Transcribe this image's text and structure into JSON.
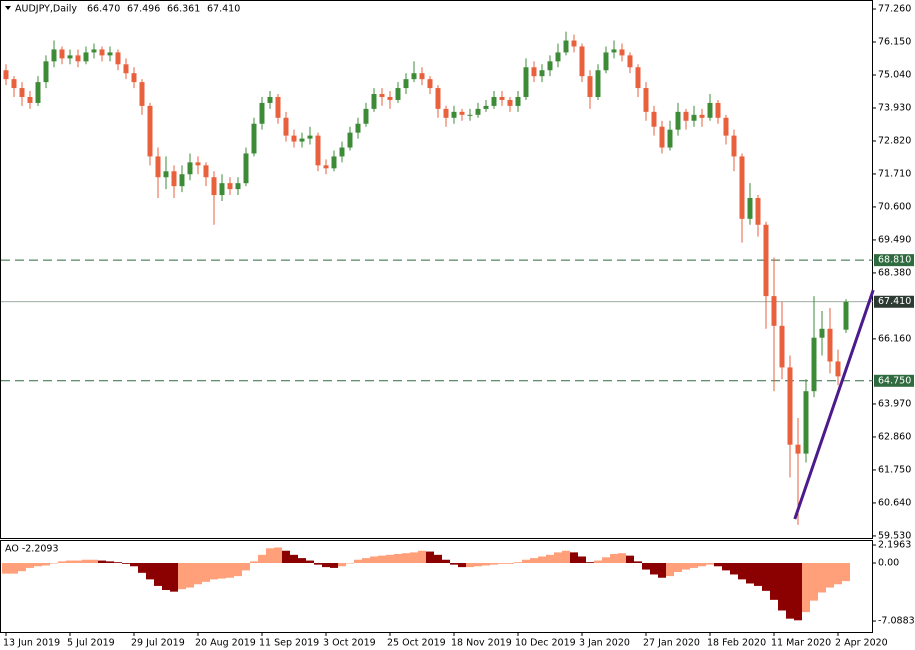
{
  "chart_data": [
    {
      "type": "candlestick",
      "title": "AUDJPY,Daily",
      "title_values": [
        "66.470",
        "67.496",
        "66.361",
        "67.410"
      ],
      "up_color": "#3d8b37",
      "down_color": "#e8603c",
      "ohlc": [
        [
          75.2,
          75.4,
          74.7,
          74.9
        ],
        [
          74.9,
          75.0,
          74.3,
          74.6
        ],
        [
          74.6,
          74.8,
          74.0,
          74.3
        ],
        [
          74.3,
          74.5,
          73.9,
          74.1
        ],
        [
          74.1,
          75.0,
          74.0,
          74.8
        ],
        [
          74.8,
          75.7,
          74.6,
          75.5
        ],
        [
          75.5,
          76.2,
          75.3,
          75.9
        ],
        [
          75.9,
          76.0,
          75.4,
          75.6
        ],
        [
          75.6,
          75.9,
          75.4,
          75.7
        ],
        [
          75.7,
          75.9,
          75.3,
          75.5
        ],
        [
          75.5,
          76.0,
          75.4,
          75.8
        ],
        [
          75.8,
          76.1,
          75.6,
          75.9
        ],
        [
          75.9,
          76.0,
          75.5,
          75.7
        ],
        [
          75.7,
          76.0,
          75.5,
          75.8
        ],
        [
          75.8,
          75.9,
          75.2,
          75.4
        ],
        [
          75.4,
          75.6,
          74.9,
          75.1
        ],
        [
          75.1,
          75.3,
          74.6,
          74.8
        ],
        [
          74.8,
          74.9,
          73.7,
          74.0
        ],
        [
          74.0,
          74.1,
          72.0,
          72.3
        ],
        [
          72.3,
          72.6,
          70.9,
          71.6
        ],
        [
          71.6,
          72.3,
          71.2,
          71.8
        ],
        [
          71.8,
          72.0,
          70.9,
          71.3
        ],
        [
          71.3,
          72.0,
          71.1,
          71.7
        ],
        [
          71.7,
          72.4,
          71.5,
          72.1
        ],
        [
          72.1,
          72.3,
          71.7,
          72.0
        ],
        [
          72.0,
          72.1,
          71.3,
          71.6
        ],
        [
          71.6,
          71.8,
          70.0,
          71.0
        ],
        [
          71.0,
          71.7,
          70.8,
          71.4
        ],
        [
          71.4,
          71.6,
          71.0,
          71.2
        ],
        [
          71.2,
          71.6,
          71.0,
          71.4
        ],
        [
          71.4,
          72.6,
          71.3,
          72.4
        ],
        [
          72.4,
          73.6,
          72.3,
          73.4
        ],
        [
          73.4,
          74.3,
          73.2,
          74.1
        ],
        [
          74.1,
          74.5,
          73.9,
          74.3
        ],
        [
          74.3,
          74.4,
          73.4,
          73.6
        ],
        [
          73.6,
          73.8,
          72.8,
          73.0
        ],
        [
          73.0,
          73.2,
          72.6,
          72.8
        ],
        [
          72.8,
          73.1,
          72.6,
          72.9
        ],
        [
          72.9,
          73.3,
          72.7,
          73.0
        ],
        [
          73.0,
          73.1,
          71.8,
          72.0
        ],
        [
          72.0,
          72.2,
          71.7,
          71.9
        ],
        [
          71.9,
          72.5,
          71.8,
          72.3
        ],
        [
          72.3,
          72.8,
          72.1,
          72.6
        ],
        [
          72.6,
          73.3,
          72.5,
          73.1
        ],
        [
          73.1,
          73.6,
          72.9,
          73.4
        ],
        [
          73.4,
          74.1,
          73.3,
          73.9
        ],
        [
          73.9,
          74.6,
          73.8,
          74.4
        ],
        [
          74.4,
          74.6,
          74.0,
          74.3
        ],
        [
          74.3,
          74.5,
          73.9,
          74.2
        ],
        [
          74.2,
          74.8,
          74.1,
          74.6
        ],
        [
          74.6,
          75.1,
          74.4,
          74.9
        ],
        [
          74.9,
          75.5,
          74.8,
          75.1
        ],
        [
          75.1,
          75.3,
          74.7,
          74.9
        ],
        [
          74.9,
          75.0,
          74.4,
          74.6
        ],
        [
          74.6,
          74.7,
          73.6,
          73.9
        ],
        [
          73.9,
          74.0,
          73.3,
          73.6
        ],
        [
          73.6,
          74.0,
          73.4,
          73.8
        ],
        [
          73.8,
          73.9,
          73.5,
          73.7
        ],
        [
          73.7,
          73.9,
          73.5,
          73.7
        ],
        [
          73.7,
          74.1,
          73.6,
          73.9
        ],
        [
          73.9,
          74.2,
          73.8,
          74.0
        ],
        [
          74.0,
          74.5,
          73.9,
          74.3
        ],
        [
          74.3,
          74.5,
          74.0,
          74.2
        ],
        [
          74.2,
          74.3,
          73.8,
          74.0
        ],
        [
          74.0,
          74.5,
          73.8,
          74.3
        ],
        [
          74.3,
          75.6,
          74.2,
          75.3
        ],
        [
          75.3,
          75.5,
          74.8,
          75.0
        ],
        [
          75.0,
          75.4,
          74.8,
          75.2
        ],
        [
          75.2,
          75.7,
          75.0,
          75.5
        ],
        [
          75.5,
          76.1,
          75.3,
          75.8
        ],
        [
          75.8,
          76.5,
          75.7,
          76.2
        ],
        [
          76.2,
          76.4,
          75.8,
          76.0
        ],
        [
          76.0,
          76.1,
          74.8,
          75.0
        ],
        [
          75.0,
          75.2,
          73.9,
          74.3
        ],
        [
          74.3,
          75.4,
          74.2,
          75.2
        ],
        [
          75.2,
          76.0,
          75.1,
          75.8
        ],
        [
          75.8,
          76.2,
          75.6,
          75.9
        ],
        [
          75.9,
          76.1,
          75.5,
          75.7
        ],
        [
          75.7,
          75.8,
          75.1,
          75.3
        ],
        [
          75.3,
          75.4,
          74.3,
          74.6
        ],
        [
          74.6,
          74.8,
          73.5,
          73.8
        ],
        [
          73.8,
          74.0,
          73.0,
          73.3
        ],
        [
          73.3,
          73.5,
          72.4,
          72.6
        ],
        [
          72.6,
          73.5,
          72.5,
          73.2
        ],
        [
          73.2,
          74.1,
          73.0,
          73.8
        ],
        [
          73.8,
          73.9,
          73.2,
          73.5
        ],
        [
          73.5,
          74.0,
          73.3,
          73.7
        ],
        [
          73.7,
          73.9,
          73.3,
          73.6
        ],
        [
          73.6,
          74.4,
          73.5,
          74.1
        ],
        [
          74.1,
          74.2,
          73.4,
          73.6
        ],
        [
          73.6,
          73.7,
          72.7,
          73.0
        ],
        [
          73.0,
          73.2,
          71.8,
          72.3
        ],
        [
          72.3,
          72.4,
          69.4,
          70.2
        ],
        [
          70.2,
          71.4,
          70.0,
          70.9
        ],
        [
          70.9,
          71.0,
          69.6,
          70.0
        ],
        [
          70.0,
          70.1,
          66.5,
          67.6
        ],
        [
          67.6,
          68.9,
          64.4,
          66.6
        ],
        [
          66.6,
          67.4,
          64.8,
          65.2
        ],
        [
          65.2,
          65.6,
          61.5,
          62.6
        ],
        [
          62.6,
          63.5,
          59.9,
          62.3
        ],
        [
          62.3,
          64.8,
          62.0,
          64.4
        ],
        [
          64.4,
          67.6,
          64.2,
          66.2
        ],
        [
          66.2,
          67.1,
          65.6,
          66.5
        ],
        [
          66.5,
          67.2,
          65.0,
          65.4
        ],
        [
          65.4,
          65.8,
          64.6,
          64.9
        ],
        [
          66.47,
          67.496,
          66.361,
          67.41
        ]
      ],
      "ylim": [
        59.46,
        77.53
      ],
      "yticks": [
        {
          "value": 77.26,
          "label": "77.260"
        },
        {
          "value": 76.15,
          "label": "76.150"
        },
        {
          "value": 75.04,
          "label": "75.040"
        },
        {
          "value": 73.93,
          "label": "73.930"
        },
        {
          "value": 72.82,
          "label": "72.820"
        },
        {
          "value": 71.71,
          "label": "71.710"
        },
        {
          "value": 70.6,
          "label": "70.600"
        },
        {
          "value": 69.49,
          "label": "69.490"
        },
        {
          "value": 68.38,
          "label": "68.380"
        },
        {
          "value": 66.16,
          "label": "66.160"
        },
        {
          "value": 63.97,
          "label": "63.970"
        },
        {
          "value": 62.86,
          "label": "62.860"
        },
        {
          "value": 61.75,
          "label": "61.750"
        },
        {
          "value": 60.64,
          "label": "60.640"
        },
        {
          "value": 59.53,
          "label": "59.530"
        }
      ],
      "xticks": [
        {
          "value": 0,
          "label": "13 Jun 2019"
        },
        {
          "value": 8,
          "label": "5 Jul 2019"
        },
        {
          "value": 16,
          "label": "29 Jul 2019"
        },
        {
          "value": 24,
          "label": "20 Aug 2019"
        },
        {
          "value": 32,
          "label": "11 Sep 2019"
        },
        {
          "value": 40,
          "label": "3 Oct 2019"
        },
        {
          "value": 48,
          "label": "25 Oct 2019"
        },
        {
          "value": 56,
          "label": "18 Nov 2019"
        },
        {
          "value": 64,
          "label": "10 Dec 2019"
        },
        {
          "value": 72,
          "label": "3 Jan 2020"
        },
        {
          "value": 80,
          "label": "27 Jan 2020"
        },
        {
          "value": 88,
          "label": "18 Feb 2020"
        },
        {
          "value": 96,
          "label": "11 Mar 2020"
        },
        {
          "value": 104,
          "label": "2 Apr 2020"
        }
      ],
      "levels": [
        {
          "value": 68.81,
          "label": "68.810"
        },
        {
          "value": 64.75,
          "label": "64.750"
        }
      ],
      "level_color": "#2f6b3f",
      "current": {
        "value": 67.41,
        "label": "67.410"
      },
      "current_color": "#2b3a33",
      "trendline": {
        "x": [
          98.6,
          108.4
        ],
        "y": [
          60.1,
          67.8
        ],
        "color": "#4b1a8c"
      }
    },
    {
      "type": "bar",
      "title": "AO -2.2093",
      "up_color": "#ffa07a",
      "down_color": "#8b0000",
      "values": [
        -1.3,
        -1.3,
        -1.0,
        -0.6,
        -0.4,
        -0.3,
        0.0,
        0.2,
        0.3,
        0.3,
        0.4,
        0.4,
        0.3,
        0.2,
        0.1,
        -0.1,
        -0.4,
        -1.2,
        -2.0,
        -2.8,
        -3.3,
        -3.5,
        -3.2,
        -3.0,
        -2.6,
        -2.3,
        -2.0,
        -1.9,
        -1.8,
        -1.6,
        -0.9,
        0.2,
        1.0,
        1.8,
        1.9,
        1.5,
        1.0,
        0.6,
        0.3,
        -0.2,
        -0.5,
        -0.6,
        -0.4,
        0.0,
        0.4,
        0.6,
        0.8,
        0.9,
        1.0,
        1.1,
        1.2,
        1.3,
        1.5,
        1.4,
        1.0,
        0.4,
        -0.2,
        -0.5,
        -0.5,
        -0.4,
        -0.3,
        -0.2,
        -0.1,
        -0.1,
        0.1,
        0.4,
        0.6,
        0.8,
        1.0,
        1.3,
        1.5,
        1.3,
        0.8,
        0.1,
        0.3,
        0.7,
        1.1,
        1.2,
        0.9,
        0.2,
        -0.8,
        -1.4,
        -1.8,
        -1.6,
        -1.1,
        -0.8,
        -0.6,
        -0.4,
        -0.2,
        -0.4,
        -0.9,
        -1.4,
        -2.0,
        -2.5,
        -2.8,
        -3.4,
        -4.5,
        -5.8,
        -6.8,
        -7.0,
        -6.0,
        -4.6,
        -3.6,
        -3.0,
        -2.6,
        -2.2093
      ],
      "ylim": [
        -8.43,
        2.69
      ],
      "yticks": [
        2.1963,
        {
          "value": 0,
          "label": "0.00"
        },
        -7.0883
      ]
    }
  ]
}
